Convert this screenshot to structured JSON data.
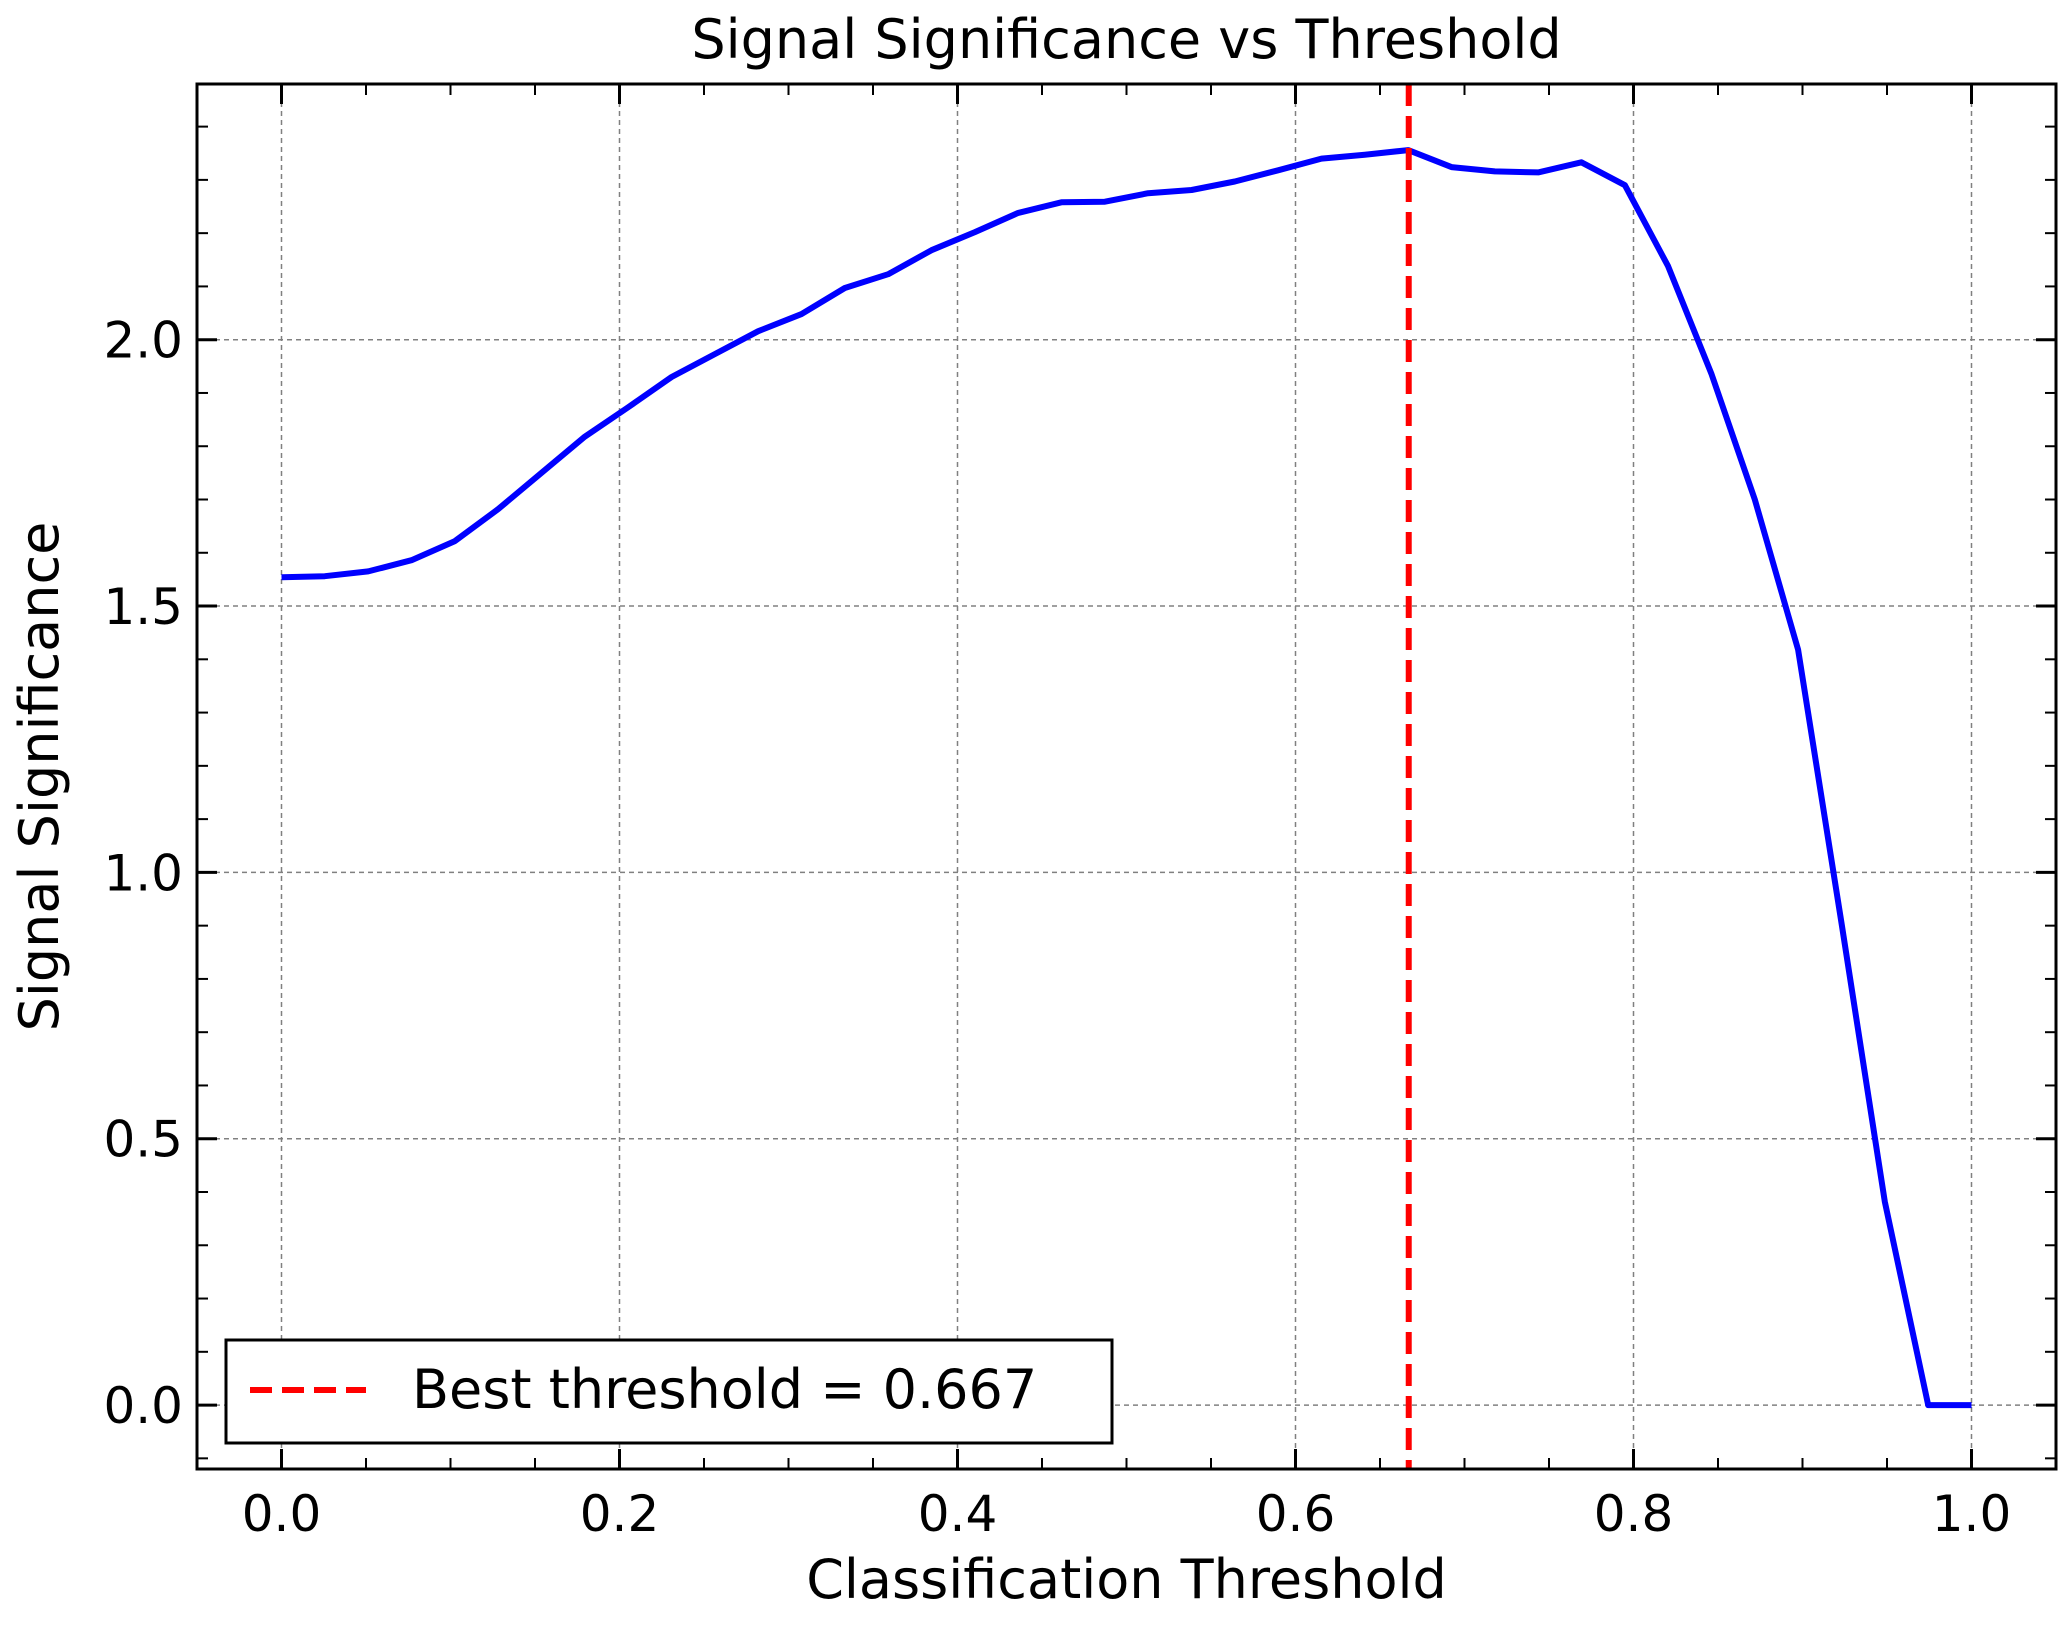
{
  "chart_data": {
    "type": "line",
    "title": "Signal Significance vs Threshold",
    "xlabel": "Classification Threshold",
    "ylabel": "Signal Significance",
    "xlim": [
      -0.05,
      1.05
    ],
    "ylim": [
      -0.12,
      2.48
    ],
    "xticks": [
      0.0,
      0.2,
      0.4,
      0.6,
      0.8,
      1.0
    ],
    "xtick_labels": [
      "0.0",
      "0.2",
      "0.4",
      "0.6",
      "0.8",
      "1.0"
    ],
    "yticks": [
      0.0,
      0.5,
      1.0,
      1.5,
      2.0
    ],
    "ytick_labels": [
      "0.0",
      "0.5",
      "1.0",
      "1.5",
      "2.0"
    ],
    "grid": true,
    "legend_position": "lower-left",
    "series": [
      {
        "kind": "line",
        "color": "#0000ff",
        "x": [
          0.0,
          0.0256,
          0.0513,
          0.0769,
          0.1026,
          0.1282,
          0.1538,
          0.1795,
          0.2051,
          0.2308,
          0.2564,
          0.2821,
          0.3077,
          0.3333,
          0.359,
          0.3846,
          0.4103,
          0.4359,
          0.4615,
          0.4872,
          0.5128,
          0.5385,
          0.5641,
          0.5897,
          0.6154,
          0.641,
          0.6667,
          0.6923,
          0.7179,
          0.7436,
          0.7692,
          0.7949,
          0.8205,
          0.8462,
          0.8718,
          0.8974,
          0.9231,
          0.9487,
          0.9744,
          1.0
        ],
        "y": [
          1.554,
          1.556,
          1.565,
          1.586,
          1.622,
          1.682,
          1.75,
          1.818,
          1.873,
          1.93,
          1.973,
          2.016,
          2.048,
          2.097,
          2.123,
          2.168,
          2.202,
          2.238,
          2.258,
          2.259,
          2.275,
          2.281,
          2.297,
          2.318,
          2.34,
          2.347,
          2.356,
          2.324,
          2.316,
          2.314,
          2.333,
          2.29,
          2.138,
          1.935,
          1.7,
          1.418,
          0.905,
          0.382,
          0.0,
          0.0
        ]
      },
      {
        "kind": "vline",
        "name": "Best threshold = 0.667",
        "x": 0.667,
        "color": "#ff0000",
        "style": "dashed"
      }
    ]
  }
}
